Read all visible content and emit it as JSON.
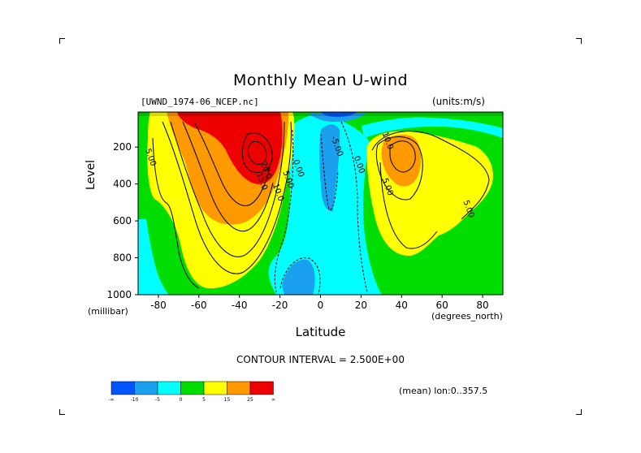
{
  "chart_data": {
    "type": "contour",
    "title": "Monthly Mean U-wind",
    "dataset_label": "[UWND_1974-06_NCEP.nc]",
    "units_label": "(units:m/s)",
    "xlabel": "Latitude",
    "x_unit_label": "(degrees_north)",
    "ylabel": "Level",
    "y_unit_label": "(millibar)",
    "xlim": [
      -90,
      90
    ],
    "ylim": [
      1000,
      10
    ],
    "y_inverted": true,
    "x_ticks": [
      -80,
      -60,
      -40,
      -20,
      0,
      20,
      40,
      60,
      80
    ],
    "x_tick_labels": [
      "-80",
      "-60",
      "-40",
      "-20",
      "0",
      "20",
      "40",
      "60",
      "80"
    ],
    "y_ticks": [
      200,
      400,
      600,
      800,
      1000
    ],
    "y_tick_labels": [
      "200",
      "400",
      "600",
      "800",
      "1000"
    ],
    "contour_interval_label": "CONTOUR INTERVAL = 2.500E+00",
    "contour_labels": [
      {
        "text": "5.00",
        "lat": -85,
        "lev": 260
      },
      {
        "text": "20.0",
        "lat": -28,
        "lev": 330
      },
      {
        "text": "15.0",
        "lat": -30,
        "lev": 390
      },
      {
        "text": "10.0",
        "lat": -22,
        "lev": 450
      },
      {
        "text": "5.00",
        "lat": -17,
        "lev": 380
      },
      {
        "text": "0.00",
        "lat": -12,
        "lev": 320
      },
      {
        "text": "-5.00",
        "lat": 7,
        "lev": 200
      },
      {
        "text": "0.00",
        "lat": 18,
        "lev": 300
      },
      {
        "text": "10.0",
        "lat": 32,
        "lev": 170
      },
      {
        "text": "5.00",
        "lat": 32,
        "lev": 420
      },
      {
        "text": "5.00",
        "lat": 72,
        "lev": 540
      }
    ],
    "features": [
      {
        "name": "southern-hemisphere-jet",
        "lat": -28,
        "lev": 200,
        "max_ms": 30,
        "note": "core above 25 m/s"
      },
      {
        "name": "northern-hemisphere-jet",
        "lat": 40,
        "lev": 200,
        "max_ms": 20
      },
      {
        "name": "tropical-easterlies",
        "lat": 5,
        "lev": 150,
        "min_ms": -10
      },
      {
        "name": "low-level-easterlies",
        "lat": -10,
        "lev": 900,
        "min_ms": -7.5
      }
    ],
    "colorbar": {
      "colors": [
        "#0055ff",
        "#1aa0ee",
        "#00ffff",
        "#00dd00",
        "#ffff00",
        "#ff9900",
        "#ee0000"
      ],
      "tick_labels": [
        "-∞",
        "-10",
        "-5",
        "0",
        "5",
        "15",
        "25",
        "∞"
      ]
    },
    "footer": "(mean) lon:0..357.5"
  }
}
